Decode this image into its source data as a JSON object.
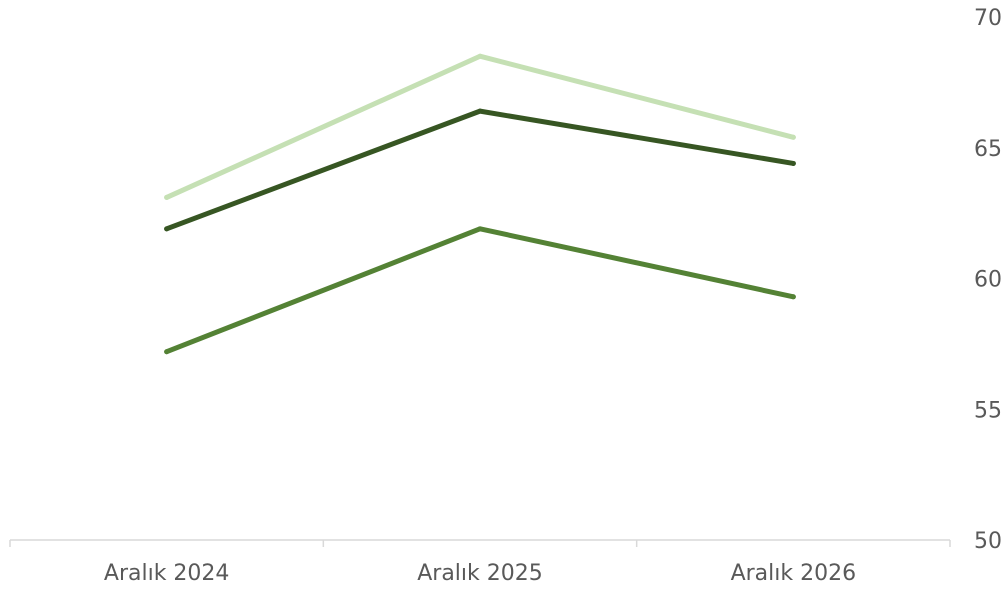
{
  "chart_data": {
    "type": "line",
    "categories": [
      "Aralık 2024",
      "Aralık 2025",
      "Aralık 2026"
    ],
    "yticks": [
      "50",
      "55",
      "60",
      "65",
      "70"
    ],
    "ylim": [
      50,
      70
    ],
    "grid": false,
    "y_axis_side": "right",
    "series": [
      {
        "values": [
          63.1,
          68.5,
          65.4
        ],
        "color": "#c5e0b4"
      },
      {
        "values": [
          61.9,
          66.4,
          64.4
        ],
        "color": "#375623"
      },
      {
        "values": [
          57.2,
          61.9,
          59.3
        ],
        "color": "#548235"
      }
    ]
  }
}
